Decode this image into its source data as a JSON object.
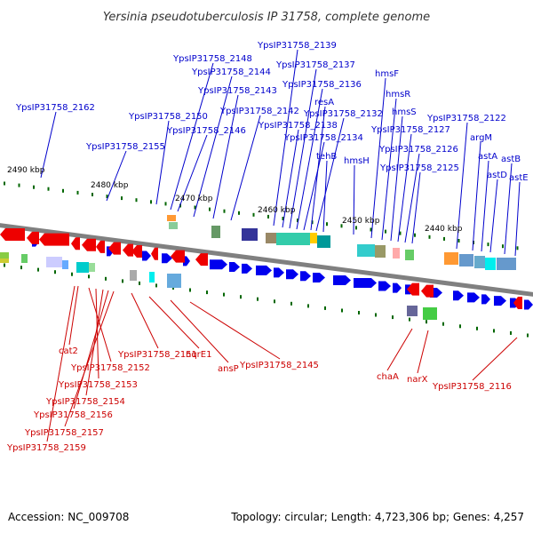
{
  "title": "Yersinia pseudotuberculosis IP 31758, complete genome",
  "accession": "Accession: NC_009708",
  "topology": "Topology: circular; Length: 4,723,306 bp; Genes: 4,257",
  "colors": {
    "forward": "#0000ee",
    "reverse": "#ee0000",
    "leader_forward": "#0000cc",
    "leader_reverse": "#cc0000",
    "backbone": "#808080",
    "tick": "#006600"
  },
  "kbp_ticks": [
    "2490 kbp",
    "2480 kbp",
    "2470 kbp",
    "2460 kbp",
    "2450 kbp",
    "2440 kbp"
  ],
  "forward_genes": [
    "YpsIP31758_2162",
    "YpsIP31758_2155",
    "YpsIP31758_2150",
    "YpsIP31758_2148",
    "YpsIP31758_2146",
    "YpsIP31758_2144",
    "YpsIP31758_2143",
    "YpsIP31758_2142",
    "YpsIP31758_2139",
    "YpsIP31758_2138",
    "YpsIP31758_2137",
    "YpsIP31758_2136",
    "YpsIP31758_2134",
    "resA",
    "YpsIP31758_2132",
    "tehB",
    "hmsH",
    "hmsF",
    "hmsR",
    "hmsS",
    "YpsIP31758_2127",
    "YpsIP31758_2126",
    "YpsIP31758_2125",
    "YpsIP31758_2122",
    "argM",
    "astA",
    "astD",
    "astB",
    "astE"
  ],
  "reverse_genes": [
    "cat2",
    "YpsIP31758_2151",
    "nqrE1",
    "ansP",
    "YpsIP31758_2145",
    "YpsIP31758_2152",
    "YpsIP31758_2153",
    "YpsIP31758_2154",
    "YpsIP31758_2156",
    "YpsIP31758_2157",
    "YpsIP31758_2159",
    "chaA",
    "narX",
    "YpsIP31758_2116"
  ]
}
